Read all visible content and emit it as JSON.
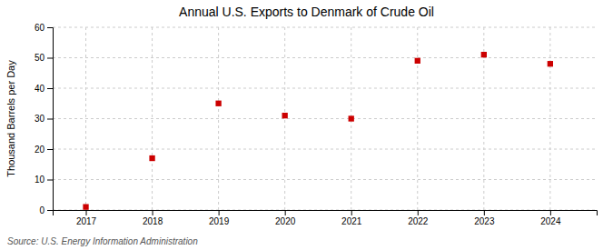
{
  "chart_data": {
    "type": "scatter",
    "title": "Annual U.S. Exports to Denmark of Crude Oil",
    "ylabel": "Thousand Barrels per Day",
    "annotations": [
      "Source: U.S. Energy Information Administration"
    ],
    "x": [
      2017,
      2018,
      2019,
      2020,
      2021,
      2022,
      2023,
      2024
    ],
    "values": [
      1.0,
      17.0,
      35.0,
      31.0,
      30.0,
      49.0,
      51.0,
      48.0
    ],
    "color": "#cc0000",
    "marker": "square",
    "xlim": [
      2016.5,
      2024.7
    ],
    "xticks": [
      2017,
      2018,
      2019,
      2020,
      2021,
      2022,
      2023,
      2024
    ],
    "ylim": [
      0,
      60
    ],
    "yticks": [
      0,
      10,
      20,
      30,
      40,
      50,
      60
    ],
    "grid": true
  }
}
